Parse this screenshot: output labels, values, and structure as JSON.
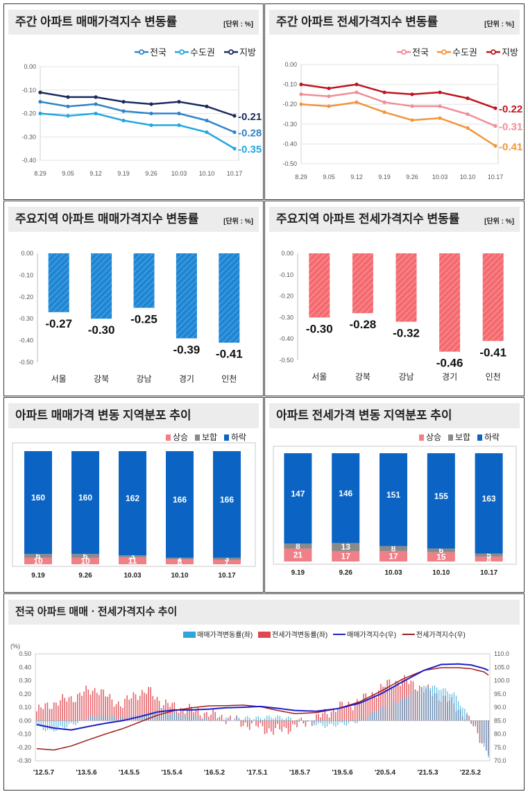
{
  "panels": {
    "p1": {
      "title": "주간 아파트 매매가격지수 변동률",
      "unit": "[단위 : %]"
    },
    "p2": {
      "title": "주간 아파트 전세가격지수 변동률",
      "unit": "[단위 : %]"
    },
    "p3": {
      "title": "주요지역 아파트 매매가격지수 변동률",
      "unit": "[단위 : %]"
    },
    "p4": {
      "title": "주요지역 아파트 전세가격지수 변동률",
      "unit": "[단위 : %]"
    },
    "p5": {
      "title": "아파트 매매가격 변동 지역분포 추이"
    },
    "p6": {
      "title": "아파트 전세가격 변동 지역분포 추이"
    },
    "p7": {
      "title": "전국 아파트 매매ㆍ전세가격지수 추이"
    }
  },
  "chart_data": [
    {
      "id": "p1",
      "type": "line",
      "x": [
        "8.29",
        "9.05",
        "9.12",
        "9.19",
        "9.26",
        "10.03",
        "10.10",
        "10.17"
      ],
      "ylim": [
        -0.4,
        0.0
      ],
      "yticks": [
        "0.00",
        "-0.10",
        "-0.20",
        "-0.30",
        "-0.40"
      ],
      "series": [
        {
          "name": "전국",
          "color": "#2f84c8",
          "values": [
            -0.15,
            -0.17,
            -0.16,
            -0.19,
            -0.2,
            -0.2,
            -0.23,
            -0.28
          ],
          "end_label": "-0.28"
        },
        {
          "name": "수도권",
          "color": "#22a7e0",
          "values": [
            -0.2,
            -0.21,
            -0.2,
            -0.23,
            -0.25,
            -0.25,
            -0.28,
            -0.35
          ],
          "end_label": "-0.35"
        },
        {
          "name": "지방",
          "color": "#1a2a5e",
          "values": [
            -0.11,
            -0.13,
            -0.13,
            -0.15,
            -0.16,
            -0.15,
            -0.17,
            -0.21
          ],
          "end_label": "-0.21"
        }
      ]
    },
    {
      "id": "p2",
      "type": "line",
      "x": [
        "8.29",
        "9.05",
        "9.12",
        "9.19",
        "9.26",
        "10.03",
        "10.10",
        "10.17"
      ],
      "ylim": [
        -0.5,
        0.0
      ],
      "yticks": [
        "0.00",
        "-0.10",
        "-0.20",
        "-0.30",
        "-0.40",
        "-0.50"
      ],
      "series": [
        {
          "name": "전국",
          "color": "#f08c97",
          "values": [
            -0.15,
            -0.16,
            -0.14,
            -0.19,
            -0.21,
            -0.21,
            -0.25,
            -0.31
          ],
          "end_label": "-0.31"
        },
        {
          "name": "수도권",
          "color": "#f0963c",
          "values": [
            -0.2,
            -0.21,
            -0.19,
            -0.24,
            -0.28,
            -0.27,
            -0.32,
            -0.41
          ],
          "end_label": "-0.41"
        },
        {
          "name": "지방",
          "color": "#c0141c",
          "values": [
            -0.1,
            -0.12,
            -0.1,
            -0.14,
            -0.15,
            -0.14,
            -0.17,
            -0.22
          ],
          "end_label": "-0.22"
        }
      ]
    },
    {
      "id": "p3",
      "type": "bar",
      "categories": [
        "서울",
        "강북",
        "강남",
        "경기",
        "인천"
      ],
      "values": [
        -0.27,
        -0.3,
        -0.25,
        -0.39,
        -0.41
      ],
      "labels": [
        "-0.27",
        "-0.30",
        "-0.25",
        "-0.39",
        "-0.41"
      ],
      "ylim": [
        -0.5,
        0.0
      ],
      "yticks": [
        "0.00",
        "-0.10",
        "-0.20",
        "-0.30",
        "-0.40",
        "-0.50"
      ],
      "color": "#1f86d4"
    },
    {
      "id": "p4",
      "type": "bar",
      "categories": [
        "서울",
        "강북",
        "강남",
        "경기",
        "인천"
      ],
      "values": [
        -0.3,
        -0.28,
        -0.32,
        -0.46,
        -0.41
      ],
      "labels": [
        "-0.30",
        "-0.28",
        "-0.32",
        "-0.46",
        "-0.41"
      ],
      "ylim": [
        -0.5,
        0.0
      ],
      "yticks": [
        "0.00",
        "-0.10",
        "-0.20",
        "-0.30",
        "-0.40",
        "-0.50"
      ],
      "color": "#f46a6f"
    },
    {
      "id": "p5",
      "type": "bar",
      "categories": [
        "9.19",
        "9.26",
        "10.03",
        "10.10",
        "10.17"
      ],
      "series": [
        {
          "name": "상승",
          "color": "#f07f87",
          "values": [
            10,
            10,
            11,
            8,
            7
          ]
        },
        {
          "name": "보합",
          "color": "#8a8a8a",
          "values": [
            6,
            6,
            3,
            2,
            3
          ]
        },
        {
          "name": "하락",
          "color": "#0b64c3",
          "values": [
            160,
            160,
            162,
            166,
            166
          ]
        }
      ]
    },
    {
      "id": "p6",
      "type": "bar",
      "categories": [
        "9.19",
        "9.26",
        "10.03",
        "10.10",
        "10.17"
      ],
      "series": [
        {
          "name": "상승",
          "color": "#f07f87",
          "values": [
            21,
            17,
            17,
            15,
            8
          ]
        },
        {
          "name": "보합",
          "color": "#8a8a8a",
          "values": [
            8,
            13,
            8,
            6,
            5
          ]
        },
        {
          "name": "하락",
          "color": "#0b64c3",
          "values": [
            147,
            146,
            151,
            155,
            163
          ]
        }
      ]
    },
    {
      "id": "p7",
      "type": "bar",
      "y_left_unit": "(%)",
      "y_left_ticks": [
        "0.50",
        "0.40",
        "0.30",
        "0.20",
        "0.10",
        "0.00",
        "-0.10",
        "-0.20",
        "-0.30"
      ],
      "y_right_ticks": [
        "110.0",
        "105.0",
        "100.0",
        "95.0",
        "90.0",
        "85.0",
        "80.0",
        "75.0",
        "70.0"
      ],
      "ylim_left": [
        -0.3,
        0.5
      ],
      "ylim_right": [
        70,
        110
      ],
      "x_ticks": [
        "'12.5.7",
        "'13.5.6",
        "'14.5.5",
        "'15.5.4",
        "'16.5.2",
        "'17.5.1",
        "'18.5.7",
        "'19.5.6",
        "'20.5.4",
        "'21.5.3",
        "'22.5.2"
      ],
      "series": [
        {
          "name": "매매가격변동률(좌)",
          "color": "#2ea6d9",
          "kind": "bar"
        },
        {
          "name": "전세가격변동률(좌)",
          "color": "#e0474f",
          "kind": "bar"
        },
        {
          "name": "매매가격지수(우)",
          "color": "#1c1cc8",
          "kind": "line"
        },
        {
          "name": "전세가격지수(우)",
          "color": "#a11a1a",
          "kind": "line"
        }
      ],
      "sale_rate_anchors": [
        [
          0,
          -0.04
        ],
        [
          6,
          -0.08
        ],
        [
          12,
          -0.05
        ],
        [
          18,
          -0.02
        ],
        [
          24,
          0.02
        ],
        [
          28,
          0.04
        ],
        [
          34,
          0.03
        ],
        [
          40,
          0.02
        ],
        [
          48,
          0.04
        ],
        [
          56,
          0.06
        ],
        [
          64,
          0.05
        ],
        [
          72,
          0.03
        ],
        [
          80,
          0.01
        ],
        [
          88,
          0.01
        ],
        [
          96,
          0.02
        ],
        [
          104,
          0.02
        ],
        [
          110,
          0.03
        ],
        [
          116,
          0.02
        ],
        [
          122,
          0.0
        ],
        [
          128,
          -0.02
        ],
        [
          134,
          -0.04
        ],
        [
          140,
          -0.03
        ],
        [
          146,
          -0.02
        ],
        [
          152,
          0.01
        ],
        [
          158,
          0.08
        ],
        [
          164,
          0.12
        ],
        [
          170,
          0.16
        ],
        [
          176,
          0.22
        ],
        [
          182,
          0.26
        ],
        [
          188,
          0.24
        ],
        [
          194,
          0.2
        ],
        [
          198,
          0.1
        ],
        [
          202,
          0.0
        ],
        [
          206,
          -0.12
        ],
        [
          210,
          -0.28
        ]
      ],
      "jeonse_rate_anchors": [
        [
          0,
          0.07
        ],
        [
          6,
          0.12
        ],
        [
          12,
          0.15
        ],
        [
          18,
          0.18
        ],
        [
          24,
          0.22
        ],
        [
          28,
          0.24
        ],
        [
          34,
          0.16
        ],
        [
          40,
          0.12
        ],
        [
          46,
          0.2
        ],
        [
          52,
          0.22
        ],
        [
          58,
          0.14
        ],
        [
          64,
          0.1
        ],
        [
          72,
          0.08
        ],
        [
          80,
          0.05
        ],
        [
          88,
          0.02
        ],
        [
          96,
          -0.02
        ],
        [
          104,
          -0.05
        ],
        [
          110,
          -0.08
        ],
        [
          116,
          -0.06
        ],
        [
          122,
          -0.03
        ],
        [
          128,
          0.0
        ],
        [
          134,
          0.05
        ],
        [
          140,
          0.1
        ],
        [
          146,
          0.12
        ],
        [
          152,
          0.16
        ],
        [
          158,
          0.22
        ],
        [
          164,
          0.28
        ],
        [
          170,
          0.3
        ],
        [
          176,
          0.27
        ],
        [
          182,
          0.22
        ],
        [
          188,
          0.18
        ],
        [
          194,
          0.12
        ],
        [
          198,
          0.06
        ],
        [
          202,
          -0.02
        ],
        [
          206,
          -0.12
        ],
        [
          210,
          -0.24
        ]
      ],
      "sale_index_anchors": [
        [
          0,
          83.5
        ],
        [
          8,
          82.2
        ],
        [
          16,
          81.5
        ],
        [
          24,
          82.8
        ],
        [
          32,
          84.0
        ],
        [
          40,
          85.0
        ],
        [
          48,
          86.5
        ],
        [
          56,
          88.2
        ],
        [
          64,
          89.0
        ],
        [
          72,
          89.0
        ],
        [
          80,
          89.3
        ],
        [
          88,
          89.8
        ],
        [
          96,
          90.0
        ],
        [
          104,
          90.3
        ],
        [
          112,
          89.6
        ],
        [
          120,
          88.8
        ],
        [
          130,
          88.5
        ],
        [
          140,
          89.5
        ],
        [
          150,
          91.5
        ],
        [
          160,
          95.0
        ],
        [
          170,
          99.5
        ],
        [
          180,
          103.8
        ],
        [
          188,
          106.0
        ],
        [
          196,
          106.2
        ],
        [
          202,
          105.8
        ],
        [
          208,
          104.5
        ],
        [
          210,
          103.8
        ]
      ],
      "jeonse_index_anchors": [
        [
          0,
          74.5
        ],
        [
          8,
          74.0
        ],
        [
          16,
          75.5
        ],
        [
          24,
          77.8
        ],
        [
          32,
          80.0
        ],
        [
          40,
          82.0
        ],
        [
          48,
          84.5
        ],
        [
          56,
          87.0
        ],
        [
          64,
          88.8
        ],
        [
          72,
          89.8
        ],
        [
          80,
          90.5
        ],
        [
          88,
          90.6
        ],
        [
          96,
          90.8
        ],
        [
          104,
          90.2
        ],
        [
          112,
          88.8
        ],
        [
          120,
          87.6
        ],
        [
          130,
          88.0
        ],
        [
          140,
          89.5
        ],
        [
          150,
          92.0
        ],
        [
          160,
          96.0
        ],
        [
          170,
          100.5
        ],
        [
          180,
          103.8
        ],
        [
          188,
          104.8
        ],
        [
          196,
          104.8
        ],
        [
          202,
          104.4
        ],
        [
          208,
          103.2
        ],
        [
          210,
          102.0
        ]
      ]
    }
  ]
}
